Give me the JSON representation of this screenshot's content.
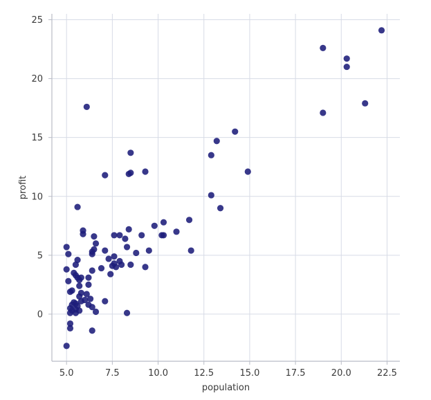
{
  "chart_data": {
    "type": "scatter",
    "title": "",
    "xlabel": "population",
    "ylabel": "profit",
    "xlim": [
      4.2,
      23.2
    ],
    "ylim": [
      -4.0,
      25.5
    ],
    "xticks": [
      5.0,
      7.5,
      10.0,
      12.5,
      15.0,
      17.5,
      20.0,
      22.5
    ],
    "xtick_labels": [
      "5.0",
      "7.5",
      "10.0",
      "12.5",
      "15.0",
      "17.5",
      "20.0",
      "22.5"
    ],
    "yticks": [
      0,
      5,
      10,
      15,
      20,
      25
    ],
    "ytick_labels": [
      "0",
      "5",
      "10",
      "15",
      "20",
      "25"
    ],
    "grid": true,
    "colors": {
      "points": "#1c1c7a",
      "grid": "#d7dbe6",
      "spine": "#b9bcc6"
    },
    "series": [
      {
        "points": [
          [
            22.2,
            24.1
          ],
          [
            19.0,
            22.6
          ],
          [
            20.3,
            21.7
          ],
          [
            20.3,
            21.0
          ],
          [
            21.3,
            17.9
          ],
          [
            19.0,
            17.1
          ],
          [
            6.1,
            17.6
          ],
          [
            14.2,
            15.5
          ],
          [
            13.2,
            14.7
          ],
          [
            8.5,
            13.7
          ],
          [
            12.9,
            13.5
          ],
          [
            9.3,
            12.1
          ],
          [
            8.5,
            12.0
          ],
          [
            8.4,
            11.9
          ],
          [
            7.1,
            11.8
          ],
          [
            14.9,
            12.1
          ],
          [
            12.9,
            10.1
          ],
          [
            13.4,
            9.0
          ],
          [
            5.6,
            9.1
          ],
          [
            11.7,
            8.0
          ],
          [
            10.3,
            7.8
          ],
          [
            9.8,
            7.5
          ],
          [
            11.0,
            7.0
          ],
          [
            8.4,
            7.2
          ],
          [
            5.9,
            7.1
          ],
          [
            10.2,
            6.7
          ],
          [
            10.3,
            6.7
          ],
          [
            9.1,
            6.7
          ],
          [
            7.6,
            6.7
          ],
          [
            7.9,
            6.7
          ],
          [
            6.5,
            6.6
          ],
          [
            8.2,
            6.4
          ],
          [
            5.9,
            6.8
          ],
          [
            6.6,
            6.0
          ],
          [
            8.3,
            5.7
          ],
          [
            6.5,
            5.5
          ],
          [
            6.4,
            5.3
          ],
          [
            7.1,
            5.4
          ],
          [
            9.5,
            5.4
          ],
          [
            11.8,
            5.4
          ],
          [
            8.8,
            5.2
          ],
          [
            6.4,
            5.1
          ],
          [
            7.6,
            4.9
          ],
          [
            7.3,
            4.7
          ],
          [
            5.0,
            5.7
          ],
          [
            5.1,
            5.1
          ],
          [
            5.6,
            4.6
          ],
          [
            5.5,
            4.2
          ],
          [
            7.9,
            4.5
          ],
          [
            8.0,
            4.2
          ],
          [
            8.5,
            4.2
          ],
          [
            7.5,
            4.1
          ],
          [
            7.7,
            4.0
          ],
          [
            7.6,
            4.3
          ],
          [
            9.3,
            4.0
          ],
          [
            6.9,
            3.9
          ],
          [
            6.4,
            3.7
          ],
          [
            5.0,
            3.8
          ],
          [
            5.4,
            3.5
          ],
          [
            7.4,
            3.4
          ],
          [
            5.5,
            3.3
          ],
          [
            5.6,
            3.1
          ],
          [
            5.8,
            3.1
          ],
          [
            6.2,
            3.1
          ],
          [
            5.7,
            2.9
          ],
          [
            5.1,
            2.8
          ],
          [
            6.2,
            2.5
          ],
          [
            5.7,
            2.4
          ],
          [
            5.3,
            2.0
          ],
          [
            5.2,
            1.9
          ],
          [
            5.8,
            1.8
          ],
          [
            6.1,
            1.7
          ],
          [
            5.7,
            1.5
          ],
          [
            6.3,
            1.3
          ],
          [
            6.0,
            1.2
          ],
          [
            7.1,
            1.1
          ],
          [
            5.8,
            1.1
          ],
          [
            5.4,
            1.0
          ],
          [
            5.5,
            0.9
          ],
          [
            5.3,
            0.8
          ],
          [
            5.6,
            0.7
          ],
          [
            6.2,
            0.8
          ],
          [
            6.4,
            0.6
          ],
          [
            5.2,
            0.5
          ],
          [
            5.5,
            0.4
          ],
          [
            5.3,
            0.3
          ],
          [
            5.7,
            0.3
          ],
          [
            6.6,
            0.2
          ],
          [
            5.2,
            0.1
          ],
          [
            5.5,
            0.1
          ],
          [
            8.3,
            0.1
          ],
          [
            5.2,
            -0.8
          ],
          [
            5.2,
            -1.2
          ],
          [
            6.4,
            -1.4
          ],
          [
            5.0,
            -2.7
          ]
        ]
      }
    ]
  }
}
